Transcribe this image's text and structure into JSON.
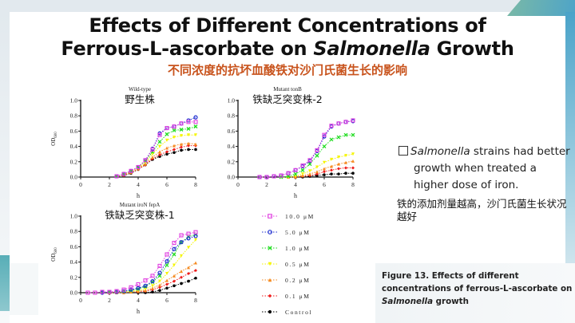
{
  "slide": {
    "title_line1": "Effects of Different Concentrations of",
    "title_line2_pre": "Ferrous-L-ascorbate on ",
    "title_line2_italic": "Salmonella",
    "title_line2_post": " Growth",
    "subtitle_cn": "不同浓度的抗坏血酸铁对沙门氏菌生长的影响",
    "bullet_italic": "Salmonella",
    "bullet_line1_rest": " strains had better",
    "bullet_line2": "growth when treated a",
    "bullet_line3": "higher dose of iron.",
    "note_cn_line1": "铁的添加剂量越高，沙门氏菌生长状况",
    "note_cn_line2": "越好",
    "caption_line1": "Figure 13. Effects of different",
    "caption_line2": "concentrations of ferrous-L-ascorbate on",
    "caption_line3_italic": "Salmonella",
    "caption_line3_rest": " growth",
    "colors": {
      "subtitle": "#c8531c"
    }
  },
  "legend": [
    {
      "label": "10.0 μM",
      "color": "#e040e0",
      "marker": "square-open"
    },
    {
      "label": "5.0 μM",
      "color": "#1f2fd0",
      "marker": "circle-open"
    },
    {
      "label": "1.0 μM",
      "color": "#22dd22",
      "marker": "x-square"
    },
    {
      "label": "0.5 μM",
      "color": "#f5f500",
      "marker": "triangle-down"
    },
    {
      "label": "0.2 μM",
      "color": "#f58a20",
      "marker": "triangle-up"
    },
    {
      "label": "0.1 μM",
      "color": "#ee1c1c",
      "marker": "diamond"
    },
    {
      "label": "Control",
      "color": "#000000",
      "marker": "circle"
    }
  ],
  "chart_data": [
    {
      "type": "line",
      "title": "Wild-type",
      "subtitle_cn": "野生株",
      "xlabel": "h",
      "ylabel": "OD600",
      "xlim": [
        0,
        8
      ],
      "ylim": [
        0,
        1.0
      ],
      "xticks": [
        "0",
        "2",
        "4",
        "6",
        "8"
      ],
      "yticks": [
        "0.0",
        "0.2",
        "0.4",
        "0.6",
        "0.8",
        "1.0"
      ],
      "x": [
        2.5,
        3,
        3.5,
        4,
        4.5,
        5,
        5.5,
        6,
        6.5,
        7,
        7.5,
        8
      ],
      "series": [
        {
          "name": "10.0 μM",
          "values": [
            0.01,
            0.04,
            0.08,
            0.13,
            0.22,
            0.36,
            0.55,
            0.64,
            0.66,
            0.7,
            0.72,
            0.72
          ]
        },
        {
          "name": "5.0 μM",
          "values": [
            0.01,
            0.04,
            0.08,
            0.13,
            0.22,
            0.37,
            0.57,
            0.64,
            0.66,
            0.7,
            0.74,
            0.78
          ]
        },
        {
          "name": "1.0 μM",
          "values": [
            0.01,
            0.04,
            0.08,
            0.13,
            0.21,
            0.33,
            0.46,
            0.56,
            0.61,
            0.62,
            0.63,
            0.66
          ]
        },
        {
          "name": "0.5 μM",
          "values": [
            0.01,
            0.03,
            0.07,
            0.12,
            0.19,
            0.3,
            0.4,
            0.48,
            0.52,
            0.54,
            0.55,
            0.55
          ]
        },
        {
          "name": "0.2 μM",
          "values": [
            0.01,
            0.03,
            0.06,
            0.11,
            0.17,
            0.26,
            0.33,
            0.38,
            0.41,
            0.43,
            0.44,
            0.43
          ]
        },
        {
          "name": "0.1 μM",
          "values": [
            0.01,
            0.02,
            0.06,
            0.1,
            0.16,
            0.24,
            0.29,
            0.33,
            0.36,
            0.39,
            0.41,
            0.41
          ]
        },
        {
          "name": "Control",
          "values": [
            0.01,
            0.02,
            0.05,
            0.1,
            0.16,
            0.23,
            0.27,
            0.3,
            0.32,
            0.35,
            0.36,
            0.36
          ]
        }
      ]
    },
    {
      "type": "line",
      "title": "Mutant tonB",
      "subtitle_cn": "铁缺乏突变株-2",
      "xlabel": "h",
      "ylabel": "",
      "xlim": [
        0,
        8
      ],
      "ylim": [
        0,
        1.0
      ],
      "xticks": [
        "0",
        "2",
        "4",
        "6",
        "8"
      ],
      "yticks": [
        "0.0",
        "0.2",
        "0.4",
        "0.6",
        "0.8",
        "1.0"
      ],
      "x": [
        1.5,
        2,
        2.5,
        3,
        3.5,
        4,
        4.5,
        5,
        5.5,
        6,
        6.5,
        7,
        7.5,
        8
      ],
      "series": [
        {
          "name": "10.0 μM",
          "values": [
            0.0,
            0.0,
            0.01,
            0.02,
            0.05,
            0.09,
            0.15,
            0.22,
            0.35,
            0.55,
            0.67,
            0.7,
            0.72,
            0.74
          ]
        },
        {
          "name": "5.0 μM",
          "values": [
            0.0,
            0.0,
            0.01,
            0.02,
            0.05,
            0.09,
            0.14,
            0.21,
            0.34,
            0.53,
            0.66,
            0.7,
            0.72,
            0.73
          ]
        },
        {
          "name": "1.0 μM",
          "values": [
            null,
            null,
            null,
            0.0,
            0.01,
            0.04,
            0.09,
            0.17,
            0.28,
            0.4,
            0.49,
            0.52,
            0.55,
            0.55
          ]
        },
        {
          "name": "0.5 μM",
          "values": [
            null,
            null,
            null,
            0.0,
            0.0,
            0.01,
            0.04,
            0.08,
            0.13,
            0.19,
            0.23,
            0.26,
            0.28,
            0.3
          ]
        },
        {
          "name": "0.2 μM",
          "values": [
            null,
            null,
            null,
            null,
            0.0,
            0.0,
            0.02,
            0.04,
            0.07,
            0.11,
            0.14,
            0.17,
            0.19,
            0.21
          ]
        },
        {
          "name": "0.1 μM",
          "values": [
            null,
            null,
            null,
            null,
            0.0,
            0.0,
            0.01,
            0.02,
            0.04,
            0.07,
            0.09,
            0.11,
            0.12,
            0.12
          ]
        },
        {
          "name": "Control",
          "values": [
            null,
            null,
            null,
            null,
            0.0,
            0.0,
            0.0,
            0.01,
            0.02,
            0.03,
            0.04,
            0.04,
            0.05,
            0.05
          ]
        }
      ]
    },
    {
      "type": "line",
      "title": "Mutant iroN fepA",
      "subtitle_cn": "铁缺乏突变株-1",
      "xlabel": "h",
      "ylabel": "OD600",
      "xlim": [
        0,
        8
      ],
      "ylim": [
        0,
        1.0
      ],
      "xticks": [
        "0",
        "2",
        "4",
        "6",
        "8"
      ],
      "yticks": [
        "0.0",
        "0.2",
        "0.4",
        "0.6",
        "0.8",
        "1.0"
      ],
      "x": [
        0.5,
        1,
        1.5,
        2,
        2.5,
        3,
        3.5,
        4,
        4.5,
        5,
        5.5,
        6,
        6.5,
        7,
        7.5,
        8
      ],
      "series": [
        {
          "name": "10.0 μM",
          "values": [
            0.0,
            0.0,
            0.01,
            0.01,
            0.02,
            0.04,
            0.07,
            0.11,
            0.16,
            0.22,
            0.35,
            0.5,
            0.65,
            0.75,
            0.77,
            0.79
          ]
        },
        {
          "name": "5.0 μM",
          "values": [
            null,
            null,
            0.0,
            0.01,
            0.01,
            0.02,
            0.04,
            0.06,
            0.09,
            0.15,
            0.26,
            0.41,
            0.57,
            0.66,
            0.71,
            0.74
          ]
        },
        {
          "name": "1.0 μM",
          "values": [
            null,
            null,
            0.01,
            0.01,
            0.01,
            0.02,
            0.03,
            0.05,
            0.08,
            0.14,
            0.22,
            0.36,
            0.5,
            0.66,
            0.73,
            0.76
          ]
        },
        {
          "name": "0.5 μM",
          "values": [
            null,
            null,
            0.01,
            0.01,
            0.01,
            0.01,
            0.02,
            0.03,
            0.05,
            0.09,
            0.15,
            0.25,
            0.36,
            0.48,
            0.59,
            0.69
          ]
        },
        {
          "name": "0.2 μM",
          "values": [
            null,
            null,
            null,
            0.0,
            0.0,
            0.0,
            0.01,
            0.02,
            0.03,
            0.06,
            0.1,
            0.16,
            0.22,
            0.28,
            0.33,
            0.39
          ]
        },
        {
          "name": "0.1 μM",
          "values": [
            null,
            null,
            null,
            0.0,
            0.0,
            0.0,
            0.01,
            0.01,
            0.02,
            0.04,
            0.07,
            0.11,
            0.15,
            0.2,
            0.25,
            0.29
          ]
        },
        {
          "name": "Control",
          "values": [
            null,
            null,
            null,
            null,
            null,
            null,
            null,
            0.0,
            0.0,
            0.01,
            0.03,
            0.06,
            0.09,
            0.12,
            0.15,
            0.19
          ]
        }
      ]
    }
  ]
}
